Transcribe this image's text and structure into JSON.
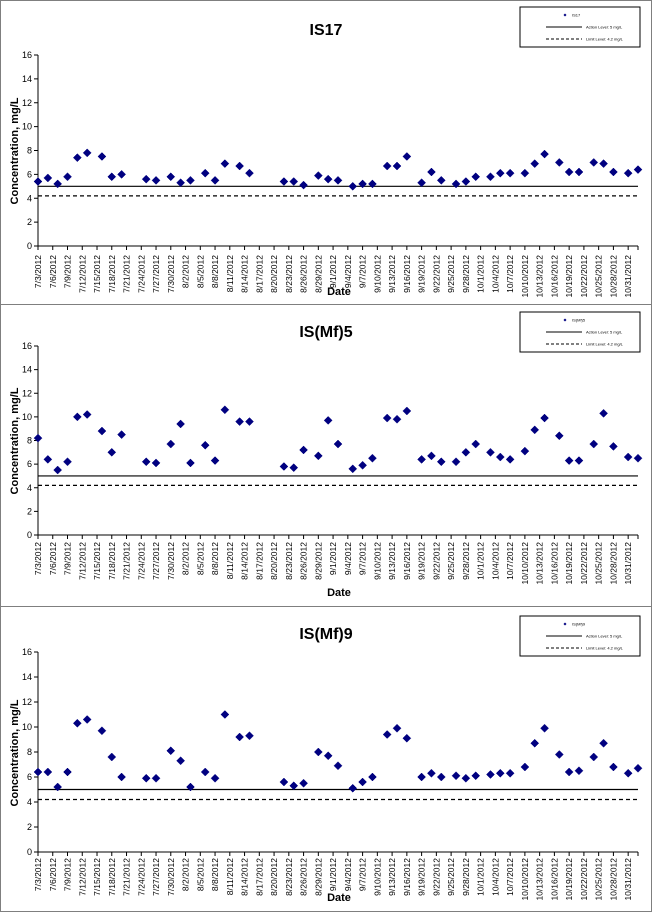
{
  "xlabel": "Date",
  "ylabel": "Concentration, mg/L",
  "dates": [
    "7/3/2012",
    "7/6/2012",
    "7/9/2012",
    "7/12/2012",
    "7/15/2012",
    "7/18/2012",
    "7/21/2012",
    "7/24/2012",
    "7/27/2012",
    "7/30/2012",
    "8/2/2012",
    "8/5/2012",
    "8/8/2012",
    "8/11/2012",
    "8/14/2012",
    "8/17/2012",
    "8/20/2012",
    "8/23/2012",
    "8/26/2012",
    "8/29/2012",
    "9/1/2012",
    "9/4/2012",
    "9/7/2012",
    "9/10/2012",
    "9/13/2012",
    "9/16/2012",
    "9/19/2012",
    "9/22/2012",
    "9/25/2012",
    "9/28/2012",
    "10/1/2012",
    "10/4/2012",
    "10/7/2012",
    "10/10/2012",
    "10/13/2012",
    "10/16/2012",
    "10/19/2012",
    "10/22/2012",
    "10/25/2012",
    "10/28/2012",
    "10/31/2012"
  ],
  "chart_data": [
    {
      "type": "scatter",
      "title": "IS17",
      "xlabel": "Date",
      "ylabel": "Concentration, mg/L",
      "ylim": [
        0,
        16
      ],
      "yticks": [
        0,
        2,
        4,
        6,
        8,
        10,
        12,
        14,
        16
      ],
      "grid": false,
      "legend": "top-right",
      "legend_entries": [
        "IS17",
        "Action Level: 5 mg/L",
        "Limit Level: 4.2 mg/L"
      ],
      "reference_lines": [
        {
          "value": 5,
          "style": "solid"
        },
        {
          "value": 4.2,
          "style": "dashed"
        }
      ],
      "series": [
        {
          "name": "IS17",
          "points": [
            [
              "7/3/2012",
              5.4
            ],
            [
              "7/5/2012",
              5.7
            ],
            [
              "7/7/2012",
              5.2
            ],
            [
              "7/9/2012",
              5.8
            ],
            [
              "7/11/2012",
              7.4
            ],
            [
              "7/13/2012",
              7.8
            ],
            [
              "7/16/2012",
              7.5
            ],
            [
              "7/18/2012",
              5.8
            ],
            [
              "7/20/2012",
              6.0
            ],
            [
              "7/25/2012",
              5.6
            ],
            [
              "7/27/2012",
              5.5
            ],
            [
              "7/30/2012",
              5.8
            ],
            [
              "8/1/2012",
              5.3
            ],
            [
              "8/3/2012",
              5.5
            ],
            [
              "8/6/2012",
              6.1
            ],
            [
              "8/8/2012",
              5.5
            ],
            [
              "8/10/2012",
              6.9
            ],
            [
              "8/13/2012",
              6.7
            ],
            [
              "8/15/2012",
              6.1
            ],
            [
              "8/22/2012",
              5.4
            ],
            [
              "8/24/2012",
              5.4
            ],
            [
              "8/26/2012",
              5.1
            ],
            [
              "8/29/2012",
              5.9
            ],
            [
              "8/31/2012",
              5.6
            ],
            [
              "9/2/2012",
              5.5
            ],
            [
              "9/5/2012",
              5.0
            ],
            [
              "9/7/2012",
              5.2
            ],
            [
              "9/9/2012",
              5.2
            ],
            [
              "9/12/2012",
              6.7
            ],
            [
              "9/14/2012",
              6.7
            ],
            [
              "9/16/2012",
              7.5
            ],
            [
              "9/19/2012",
              5.3
            ],
            [
              "9/21/2012",
              6.2
            ],
            [
              "9/23/2012",
              5.5
            ],
            [
              "9/26/2012",
              5.2
            ],
            [
              "9/28/2012",
              5.4
            ],
            [
              "9/30/2012",
              5.8
            ],
            [
              "10/3/2012",
              5.8
            ],
            [
              "10/5/2012",
              6.1
            ],
            [
              "10/7/2012",
              6.1
            ],
            [
              "10/10/2012",
              6.1
            ],
            [
              "10/12/2012",
              6.9
            ],
            [
              "10/14/2012",
              7.7
            ],
            [
              "10/17/2012",
              7.0
            ],
            [
              "10/19/2012",
              6.2
            ],
            [
              "10/21/2012",
              6.2
            ],
            [
              "10/24/2012",
              7.0
            ],
            [
              "10/26/2012",
              6.9
            ],
            [
              "10/28/2012",
              6.2
            ],
            [
              "10/31/2012",
              6.1
            ],
            [
              "11/2/2012",
              6.4
            ]
          ]
        }
      ]
    },
    {
      "type": "scatter",
      "title": "IS(Mf)5",
      "xlabel": "Date",
      "ylabel": "Concentration, mg/L",
      "ylim": [
        0,
        16
      ],
      "yticks": [
        0,
        2,
        4,
        6,
        8,
        10,
        12,
        14,
        16
      ],
      "grid": false,
      "legend": "top-right",
      "legend_entries": [
        "IS(Mf)5",
        "Action Level: 5 mg/L",
        "Limit Level: 4.2 mg/L"
      ],
      "reference_lines": [
        {
          "value": 5,
          "style": "solid"
        },
        {
          "value": 4.2,
          "style": "dashed"
        }
      ],
      "series": [
        {
          "name": "IS(Mf)5",
          "points": [
            [
              "7/3/2012",
              8.2
            ],
            [
              "7/5/2012",
              6.4
            ],
            [
              "7/7/2012",
              5.5
            ],
            [
              "7/9/2012",
              6.2
            ],
            [
              "7/11/2012",
              10.0
            ],
            [
              "7/13/2012",
              10.2
            ],
            [
              "7/16/2012",
              8.8
            ],
            [
              "7/18/2012",
              7.0
            ],
            [
              "7/20/2012",
              8.5
            ],
            [
              "7/25/2012",
              6.2
            ],
            [
              "7/27/2012",
              6.1
            ],
            [
              "7/30/2012",
              7.7
            ],
            [
              "8/1/2012",
              9.4
            ],
            [
              "8/3/2012",
              6.1
            ],
            [
              "8/6/2012",
              7.6
            ],
            [
              "8/8/2012",
              6.3
            ],
            [
              "8/10/2012",
              10.6
            ],
            [
              "8/13/2012",
              9.6
            ],
            [
              "8/15/2012",
              9.6
            ],
            [
              "8/22/2012",
              5.8
            ],
            [
              "8/24/2012",
              5.7
            ],
            [
              "8/26/2012",
              7.2
            ],
            [
              "8/29/2012",
              6.7
            ],
            [
              "8/31/2012",
              9.7
            ],
            [
              "9/2/2012",
              7.7
            ],
            [
              "9/5/2012",
              5.6
            ],
            [
              "9/7/2012",
              5.9
            ],
            [
              "9/9/2012",
              6.5
            ],
            [
              "9/12/2012",
              9.9
            ],
            [
              "9/14/2012",
              9.8
            ],
            [
              "9/16/2012",
              10.5
            ],
            [
              "9/19/2012",
              6.4
            ],
            [
              "9/21/2012",
              6.7
            ],
            [
              "9/23/2012",
              6.2
            ],
            [
              "9/26/2012",
              6.2
            ],
            [
              "9/28/2012",
              7.0
            ],
            [
              "9/30/2012",
              7.7
            ],
            [
              "10/3/2012",
              7.0
            ],
            [
              "10/5/2012",
              6.6
            ],
            [
              "10/7/2012",
              6.4
            ],
            [
              "10/10/2012",
              7.1
            ],
            [
              "10/12/2012",
              8.9
            ],
            [
              "10/14/2012",
              9.9
            ],
            [
              "10/17/2012",
              8.4
            ],
            [
              "10/19/2012",
              6.3
            ],
            [
              "10/21/2012",
              6.3
            ],
            [
              "10/24/2012",
              7.7
            ],
            [
              "10/26/2012",
              10.3
            ],
            [
              "10/28/2012",
              7.5
            ],
            [
              "10/31/2012",
              6.6
            ],
            [
              "11/2/2012",
              6.5
            ]
          ]
        }
      ]
    },
    {
      "type": "scatter",
      "title": "IS(Mf)9",
      "xlabel": "Date",
      "ylabel": "Concentration, mg/L",
      "ylim": [
        0,
        16
      ],
      "yticks": [
        0,
        2,
        4,
        6,
        8,
        10,
        12,
        14,
        16
      ],
      "grid": false,
      "legend": "top-right",
      "legend_entries": [
        "IS(Mf)9",
        "Action Level: 5 mg/L",
        "Limit Level: 4.2 mg/L"
      ],
      "reference_lines": [
        {
          "value": 5,
          "style": "solid"
        },
        {
          "value": 4.2,
          "style": "dashed"
        }
      ],
      "series": [
        {
          "name": "IS(Mf)9",
          "points": [
            [
              "7/3/2012",
              6.4
            ],
            [
              "7/5/2012",
              6.4
            ],
            [
              "7/7/2012",
              5.2
            ],
            [
              "7/9/2012",
              6.4
            ],
            [
              "7/11/2012",
              10.3
            ],
            [
              "7/13/2012",
              10.6
            ],
            [
              "7/16/2012",
              9.7
            ],
            [
              "7/18/2012",
              7.6
            ],
            [
              "7/20/2012",
              6.0
            ],
            [
              "7/25/2012",
              5.9
            ],
            [
              "7/27/2012",
              5.9
            ],
            [
              "7/30/2012",
              8.1
            ],
            [
              "8/1/2012",
              7.3
            ],
            [
              "8/3/2012",
              5.2
            ],
            [
              "8/6/2012",
              6.4
            ],
            [
              "8/8/2012",
              5.9
            ],
            [
              "8/10/2012",
              11.0
            ],
            [
              "8/13/2012",
              9.2
            ],
            [
              "8/15/2012",
              9.3
            ],
            [
              "8/22/2012",
              5.6
            ],
            [
              "8/24/2012",
              5.3
            ],
            [
              "8/26/2012",
              5.5
            ],
            [
              "8/29/2012",
              8.0
            ],
            [
              "8/31/2012",
              7.7
            ],
            [
              "9/2/2012",
              6.9
            ],
            [
              "9/5/2012",
              5.1
            ],
            [
              "9/7/2012",
              5.6
            ],
            [
              "9/9/2012",
              6.0
            ],
            [
              "9/12/2012",
              9.4
            ],
            [
              "9/14/2012",
              9.9
            ],
            [
              "9/16/2012",
              9.1
            ],
            [
              "9/19/2012",
              6.0
            ],
            [
              "9/21/2012",
              6.3
            ],
            [
              "9/23/2012",
              6.0
            ],
            [
              "9/26/2012",
              6.1
            ],
            [
              "9/28/2012",
              5.9
            ],
            [
              "9/30/2012",
              6.1
            ],
            [
              "10/3/2012",
              6.2
            ],
            [
              "10/5/2012",
              6.3
            ],
            [
              "10/7/2012",
              6.3
            ],
            [
              "10/10/2012",
              6.8
            ],
            [
              "10/12/2012",
              8.7
            ],
            [
              "10/14/2012",
              9.9
            ],
            [
              "10/17/2012",
              7.8
            ],
            [
              "10/19/2012",
              6.4
            ],
            [
              "10/21/2012",
              6.5
            ],
            [
              "10/24/2012",
              7.6
            ],
            [
              "10/26/2012",
              8.7
            ],
            [
              "10/28/2012",
              6.8
            ],
            [
              "10/31/2012",
              6.3
            ],
            [
              "11/2/2012",
              6.7
            ]
          ]
        }
      ]
    }
  ]
}
